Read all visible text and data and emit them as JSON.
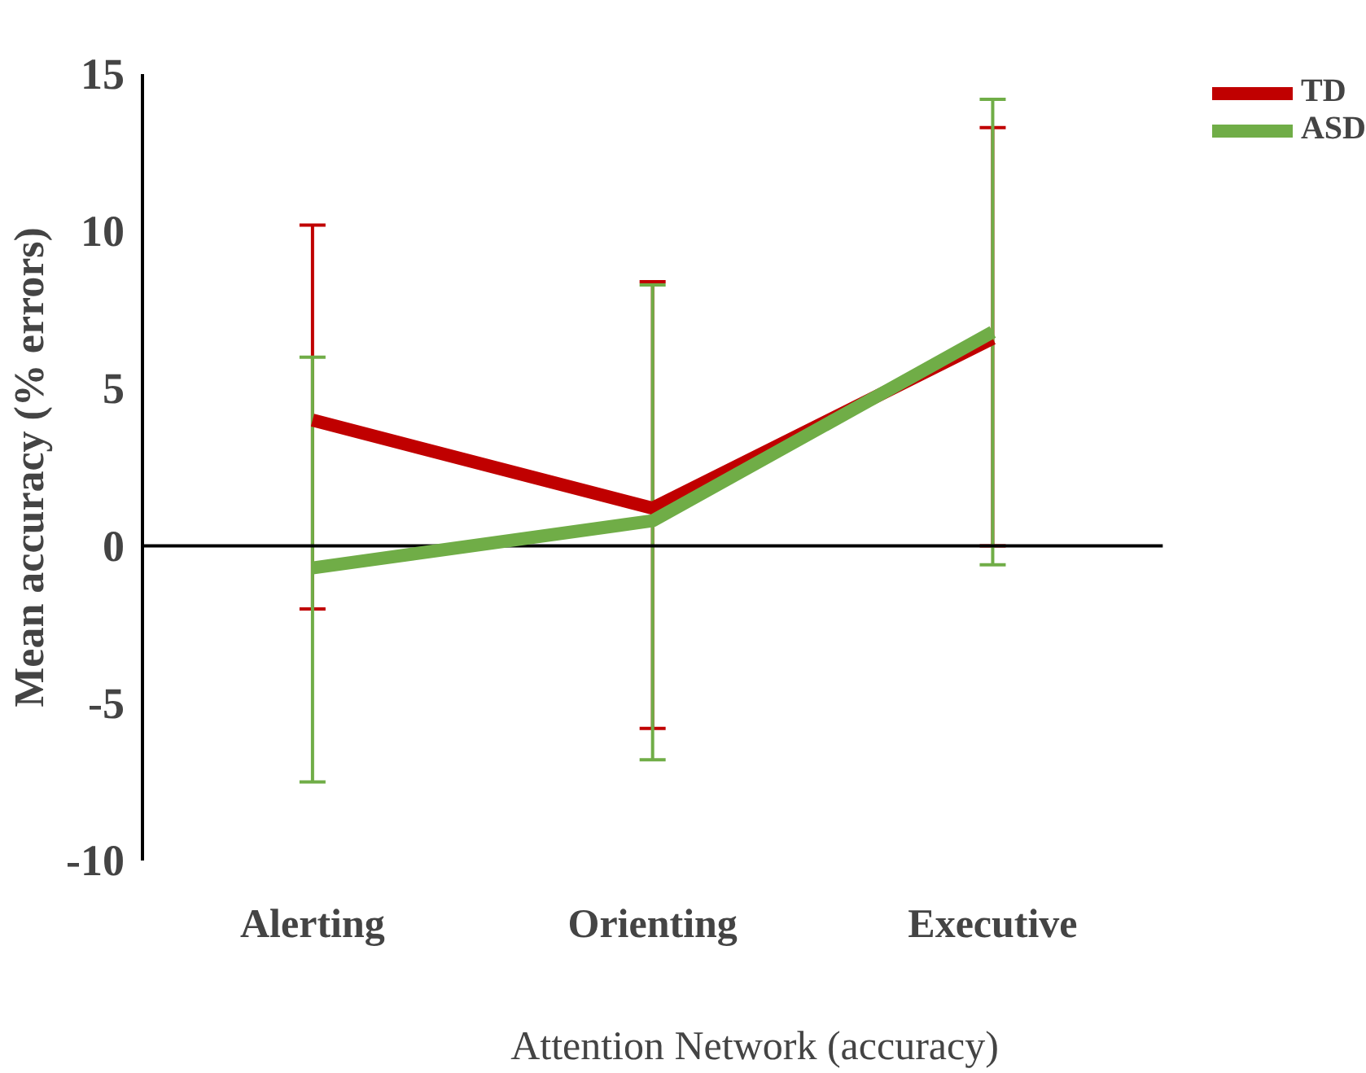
{
  "chart_data": {
    "type": "line",
    "xlabel": "Attention Network (accuracy)",
    "ylabel": "Mean accuracy (% errors)",
    "categories": [
      "Alerting",
      "Orienting",
      "Executive"
    ],
    "series": [
      {
        "name": "TD",
        "color": "#c00000",
        "values": [
          4.0,
          1.2,
          6.6
        ],
        "errors": [
          [
            -2.0,
            10.2
          ],
          [
            -5.8,
            8.4
          ],
          [
            0,
            13.3
          ]
        ]
      },
      {
        "name": "ASD",
        "color": "#70ad47",
        "values": [
          -0.7,
          0.8,
          6.8
        ],
        "errors": [
          [
            -7.5,
            6.0
          ],
          [
            -6.8,
            8.3
          ],
          [
            -0.6,
            14.2
          ]
        ]
      }
    ],
    "ref_lines": [
      {
        "axis": "y",
        "value": 0,
        "color": "#000000"
      }
    ],
    "ylim": [
      -10,
      15
    ],
    "yticks": [
      -10,
      -5,
      0,
      5,
      10,
      15
    ],
    "grid": false,
    "legend": "top right",
    "marker": "none",
    "line_style": "solid"
  }
}
